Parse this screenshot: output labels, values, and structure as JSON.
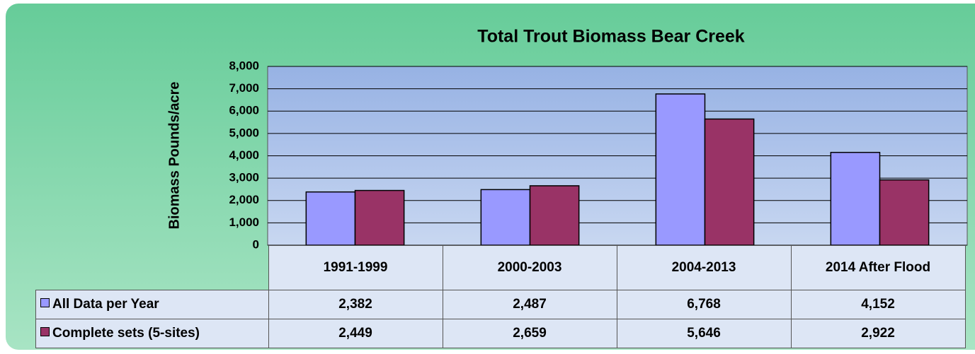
{
  "chart_data": {
    "type": "bar",
    "title": "Total Trout Biomass Bear Creek",
    "y_label": "Biomass Pounds/acre",
    "categories": [
      "1991-1999",
      "2000-2003",
      "2004-2013",
      "2014 After Flood"
    ],
    "series": [
      {
        "name": "All Data per Year",
        "color": "#9999ff",
        "values": [
          2382,
          2487,
          6768,
          4152
        ],
        "value_labels": [
          "2,382",
          "2,487",
          "6,768",
          "4,152"
        ]
      },
      {
        "name": "Complete sets (5-sites)",
        "color": "#993366",
        "values": [
          2449,
          2659,
          5646,
          2922
        ],
        "value_labels": [
          "2,449",
          "2,659",
          "5,646",
          "2,922"
        ]
      }
    ],
    "ylim": [
      0,
      8000
    ],
    "yticks": [
      0,
      {
        "value": 1000,
        "label": "1,000"
      },
      {
        "value": 2000,
        "label": "2,000"
      },
      {
        "value": 3000,
        "label": "3,000"
      },
      {
        "value": 4000,
        "label": "4,000"
      },
      {
        "value": 5000,
        "label": "5,000"
      },
      {
        "value": 6000,
        "label": "6,000"
      },
      {
        "value": 7000,
        "label": "7,000"
      },
      {
        "value": 8000,
        "label": "8,000"
      }
    ],
    "grid": true
  }
}
